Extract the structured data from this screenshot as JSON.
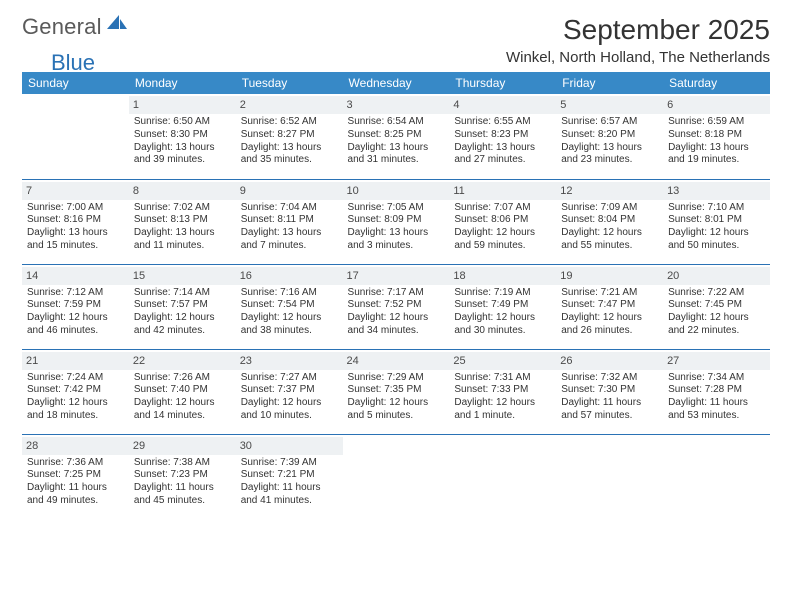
{
  "brand": {
    "general": "General",
    "blue": "Blue"
  },
  "title": "September 2025",
  "location": "Winkel, North Holland, The Netherlands",
  "colors": {
    "header_bg": "#3789c7",
    "header_fg": "#ffffff",
    "rule": "#2a72b5",
    "daynum_bg": "#eef1f3",
    "text": "#333333"
  },
  "weekdays": [
    "Sunday",
    "Monday",
    "Tuesday",
    "Wednesday",
    "Thursday",
    "Friday",
    "Saturday"
  ],
  "weeks": [
    [
      {
        "n": "",
        "sr": "",
        "ss": "",
        "dl": ""
      },
      {
        "n": "1",
        "sr": "6:50 AM",
        "ss": "8:30 PM",
        "dl": "13 hours and 39 minutes."
      },
      {
        "n": "2",
        "sr": "6:52 AM",
        "ss": "8:27 PM",
        "dl": "13 hours and 35 minutes."
      },
      {
        "n": "3",
        "sr": "6:54 AM",
        "ss": "8:25 PM",
        "dl": "13 hours and 31 minutes."
      },
      {
        "n": "4",
        "sr": "6:55 AM",
        "ss": "8:23 PM",
        "dl": "13 hours and 27 minutes."
      },
      {
        "n": "5",
        "sr": "6:57 AM",
        "ss": "8:20 PM",
        "dl": "13 hours and 23 minutes."
      },
      {
        "n": "6",
        "sr": "6:59 AM",
        "ss": "8:18 PM",
        "dl": "13 hours and 19 minutes."
      }
    ],
    [
      {
        "n": "7",
        "sr": "7:00 AM",
        "ss": "8:16 PM",
        "dl": "13 hours and 15 minutes."
      },
      {
        "n": "8",
        "sr": "7:02 AM",
        "ss": "8:13 PM",
        "dl": "13 hours and 11 minutes."
      },
      {
        "n": "9",
        "sr": "7:04 AM",
        "ss": "8:11 PM",
        "dl": "13 hours and 7 minutes."
      },
      {
        "n": "10",
        "sr": "7:05 AM",
        "ss": "8:09 PM",
        "dl": "13 hours and 3 minutes."
      },
      {
        "n": "11",
        "sr": "7:07 AM",
        "ss": "8:06 PM",
        "dl": "12 hours and 59 minutes."
      },
      {
        "n": "12",
        "sr": "7:09 AM",
        "ss": "8:04 PM",
        "dl": "12 hours and 55 minutes."
      },
      {
        "n": "13",
        "sr": "7:10 AM",
        "ss": "8:01 PM",
        "dl": "12 hours and 50 minutes."
      }
    ],
    [
      {
        "n": "14",
        "sr": "7:12 AM",
        "ss": "7:59 PM",
        "dl": "12 hours and 46 minutes."
      },
      {
        "n": "15",
        "sr": "7:14 AM",
        "ss": "7:57 PM",
        "dl": "12 hours and 42 minutes."
      },
      {
        "n": "16",
        "sr": "7:16 AM",
        "ss": "7:54 PM",
        "dl": "12 hours and 38 minutes."
      },
      {
        "n": "17",
        "sr": "7:17 AM",
        "ss": "7:52 PM",
        "dl": "12 hours and 34 minutes."
      },
      {
        "n": "18",
        "sr": "7:19 AM",
        "ss": "7:49 PM",
        "dl": "12 hours and 30 minutes."
      },
      {
        "n": "19",
        "sr": "7:21 AM",
        "ss": "7:47 PM",
        "dl": "12 hours and 26 minutes."
      },
      {
        "n": "20",
        "sr": "7:22 AM",
        "ss": "7:45 PM",
        "dl": "12 hours and 22 minutes."
      }
    ],
    [
      {
        "n": "21",
        "sr": "7:24 AM",
        "ss": "7:42 PM",
        "dl": "12 hours and 18 minutes."
      },
      {
        "n": "22",
        "sr": "7:26 AM",
        "ss": "7:40 PM",
        "dl": "12 hours and 14 minutes."
      },
      {
        "n": "23",
        "sr": "7:27 AM",
        "ss": "7:37 PM",
        "dl": "12 hours and 10 minutes."
      },
      {
        "n": "24",
        "sr": "7:29 AM",
        "ss": "7:35 PM",
        "dl": "12 hours and 5 minutes."
      },
      {
        "n": "25",
        "sr": "7:31 AM",
        "ss": "7:33 PM",
        "dl": "12 hours and 1 minute."
      },
      {
        "n": "26",
        "sr": "7:32 AM",
        "ss": "7:30 PM",
        "dl": "11 hours and 57 minutes."
      },
      {
        "n": "27",
        "sr": "7:34 AM",
        "ss": "7:28 PM",
        "dl": "11 hours and 53 minutes."
      }
    ],
    [
      {
        "n": "28",
        "sr": "7:36 AM",
        "ss": "7:25 PM",
        "dl": "11 hours and 49 minutes."
      },
      {
        "n": "29",
        "sr": "7:38 AM",
        "ss": "7:23 PM",
        "dl": "11 hours and 45 minutes."
      },
      {
        "n": "30",
        "sr": "7:39 AM",
        "ss": "7:21 PM",
        "dl": "11 hours and 41 minutes."
      },
      {
        "n": "",
        "sr": "",
        "ss": "",
        "dl": ""
      },
      {
        "n": "",
        "sr": "",
        "ss": "",
        "dl": ""
      },
      {
        "n": "",
        "sr": "",
        "ss": "",
        "dl": ""
      },
      {
        "n": "",
        "sr": "",
        "ss": "",
        "dl": ""
      }
    ]
  ],
  "labels": {
    "sunrise": "Sunrise: ",
    "sunset": "Sunset: ",
    "daylight": "Daylight: "
  }
}
